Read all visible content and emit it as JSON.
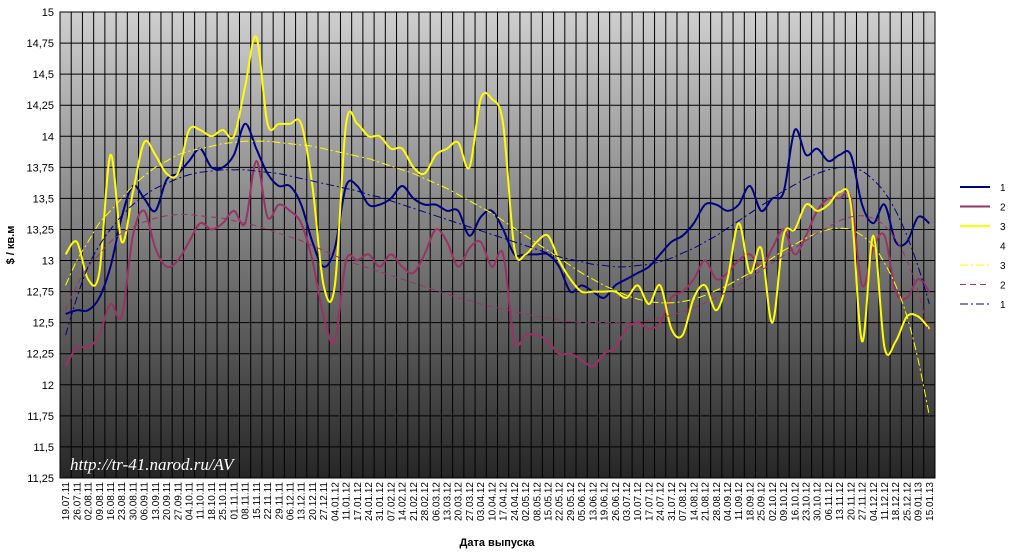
{
  "chart_data": {
    "type": "line",
    "watermark": "http://tr-41.narod.ru/AV",
    "xlabel": "Дата выпуска",
    "ylabel": "$ / кв.м",
    "grid": true,
    "legend": "right",
    "ylim": [
      11.25,
      15
    ],
    "yticks": [
      {
        "value": 11.25,
        "label": "11,25"
      },
      {
        "value": 11.5,
        "label": "11,5"
      },
      {
        "value": 11.75,
        "label": "11,75"
      },
      12,
      {
        "value": 12.25,
        "label": "12,25"
      },
      {
        "value": 12.5,
        "label": "12,5"
      },
      {
        "value": 12.75,
        "label": "12,75"
      },
      13,
      {
        "value": 13.25,
        "label": "13,25"
      },
      {
        "value": 13.5,
        "label": "13,5"
      },
      {
        "value": 13.75,
        "label": "13,75"
      },
      14,
      {
        "value": 14.25,
        "label": "14,25"
      },
      {
        "value": 14.5,
        "label": "14,5"
      },
      {
        "value": 14.75,
        "label": "14,75"
      },
      15
    ],
    "categories": [
      "19.07.11",
      "26.07.11",
      "02.08.11",
      "09.08.11",
      "16.08.11",
      "23.08.11",
      "30.08.11",
      "06.09.11",
      "13.09.11",
      "20.09.11",
      "27.09.11",
      "04.10.11",
      "11.10.11",
      "18.10.11",
      "25.10.11",
      "01.11.11",
      "08.11.11",
      "15.11.11",
      "22.11.11",
      "29.11.11",
      "06.12.11",
      "13.12.11",
      "20.12.11",
      "27.12.11",
      "04.01.12",
      "11.01.12",
      "17.01.12",
      "24.01.12",
      "31.01.12",
      "07.02.12",
      "14.02.12",
      "21.02.12",
      "28.02.12",
      "06.03.12",
      "13.03.12",
      "20.03.12",
      "27.03.12",
      "03.04.12",
      "10.04.12",
      "17.04.12",
      "24.04.12",
      "02.05.12",
      "08.05.12",
      "15.05.12",
      "22.05.12",
      "29.05.12",
      "05.06.12",
      "13.06.12",
      "19.06.12",
      "26.06.12",
      "03.07.12",
      "10.07.12",
      "17.07.12",
      "24.07.12",
      "31.07.12",
      "07.08.12",
      "14.08.12",
      "21.08.12",
      "28.08.12",
      "04.09.12",
      "11.09.12",
      "18.09.12",
      "25.09.12",
      "02.10.12",
      "09.10.12",
      "16.10.12",
      "23.10.12",
      "30.10.12",
      "06.11.12",
      "13.11.12",
      "20.11.12",
      "27.11.12",
      "04.12.12",
      "11.12.12",
      "18.12.12",
      "25.12.12",
      "09.01.13",
      "15.01.13"
    ],
    "series": [
      {
        "name": "1",
        "color": "#000080",
        "dash": "solid",
        "values": [
          12.57,
          12.6,
          12.6,
          12.7,
          12.95,
          13.35,
          13.6,
          13.5,
          13.4,
          13.65,
          13.7,
          13.8,
          13.9,
          13.75,
          13.75,
          13.85,
          14.1,
          13.9,
          13.7,
          13.6,
          13.6,
          13.45,
          13.15,
          12.95,
          13.1,
          13.6,
          13.6,
          13.45,
          13.45,
          13.5,
          13.6,
          13.5,
          13.45,
          13.45,
          13.4,
          13.4,
          13.2,
          13.35,
          13.4,
          13.25,
          13.05,
          13.05,
          13.05,
          13.05,
          12.95,
          12.75,
          12.8,
          12.75,
          12.7,
          12.8,
          12.85,
          12.9,
          12.95,
          13.05,
          13.15,
          13.2,
          13.3,
          13.45,
          13.45,
          13.4,
          13.45,
          13.6,
          13.4,
          13.5,
          13.55,
          14.05,
          13.85,
          13.9,
          13.8,
          13.85,
          13.85,
          13.45,
          13.3,
          13.45,
          13.15,
          13.15,
          13.35,
          13.3
        ]
      },
      {
        "name": "2",
        "color": "#993366",
        "dash": "solid",
        "values": [
          12.15,
          12.3,
          12.3,
          12.4,
          12.65,
          12.55,
          13.2,
          13.4,
          13.1,
          12.95,
          13.0,
          13.15,
          13.3,
          13.25,
          13.3,
          13.4,
          13.3,
          13.8,
          13.35,
          13.45,
          13.4,
          13.3,
          13.0,
          12.55,
          12.35,
          13.0,
          13.0,
          13.05,
          12.95,
          13.05,
          12.95,
          12.9,
          13.05,
          13.25,
          13.15,
          12.95,
          13.1,
          13.15,
          12.95,
          13.05,
          12.35,
          12.4,
          12.4,
          12.35,
          12.25,
          12.25,
          12.2,
          12.15,
          12.25,
          12.3,
          12.45,
          12.5,
          12.45,
          12.5,
          12.7,
          12.75,
          12.85,
          13.0,
          12.85,
          12.9,
          13.0,
          13.05,
          12.95,
          13.1,
          13.25,
          13.05,
          13.2,
          13.4,
          13.5,
          13.5,
          13.5,
          12.8,
          13.1,
          13.2,
          12.75,
          12.7,
          12.85,
          12.75
        ]
      },
      {
        "name": "3",
        "color": "#ffff00",
        "dash": "solid",
        "values": [
          13.05,
          13.15,
          12.85,
          12.9,
          13.85,
          13.15,
          13.55,
          13.95,
          13.85,
          13.7,
          13.7,
          14.05,
          14.05,
          14.0,
          14.05,
          14.0,
          14.4,
          14.8,
          14.1,
          14.1,
          14.1,
          14.1,
          13.6,
          12.8,
          12.8,
          14.1,
          14.1,
          14.0,
          14.0,
          13.9,
          13.9,
          13.75,
          13.7,
          13.85,
          13.9,
          13.95,
          13.75,
          14.3,
          14.3,
          14.1,
          13.1,
          13.05,
          13.15,
          13.2,
          13.0,
          12.85,
          12.75,
          12.75,
          12.75,
          12.75,
          12.7,
          12.8,
          12.65,
          12.8,
          12.45,
          12.4,
          12.7,
          12.8,
          12.6,
          12.85,
          13.3,
          12.9,
          13.1,
          12.5,
          13.2,
          13.25,
          13.45,
          13.4,
          13.45,
          13.55,
          13.45,
          12.35,
          13.2,
          12.3,
          12.35,
          12.55,
          12.55,
          12.45
        ]
      },
      {
        "name": "4",
        "dash": "solid",
        "values": [
          null,
          null,
          null,
          null,
          null,
          null,
          null,
          null,
          null,
          null,
          null,
          null,
          null,
          null,
          null,
          null,
          null,
          null,
          null,
          null,
          null,
          null,
          null,
          null,
          null,
          null,
          null,
          null,
          null,
          null,
          null,
          null,
          null,
          null,
          null,
          null,
          null,
          null,
          null,
          null,
          null,
          null,
          null,
          null,
          null,
          null,
          null,
          null,
          null,
          null,
          null,
          null,
          null,
          null,
          null,
          null,
          null,
          null,
          null,
          null,
          null,
          null,
          null,
          null,
          null,
          null,
          null,
          null,
          null,
          null,
          null,
          null,
          null,
          null,
          null,
          null,
          null,
          null
        ]
      },
      {
        "name": "3",
        "color": "#ffff00",
        "dash": "dash-dot",
        "values": [
          12.8,
          13.0,
          13.15,
          13.3,
          13.4,
          13.5,
          13.6,
          13.68,
          13.75,
          13.8,
          13.85,
          13.88,
          13.9,
          13.92,
          13.94,
          13.95,
          13.96,
          13.96,
          13.96,
          13.95,
          13.94,
          13.93,
          13.92,
          13.9,
          13.88,
          13.86,
          13.84,
          13.82,
          13.79,
          13.76,
          13.73,
          13.7,
          13.66,
          13.62,
          13.58,
          13.53,
          13.48,
          13.43,
          13.38,
          13.32,
          13.26,
          13.2,
          13.14,
          13.08,
          13.02,
          12.96,
          12.9,
          12.85,
          12.8,
          12.76,
          12.72,
          12.69,
          12.67,
          12.66,
          12.66,
          12.67,
          12.69,
          12.72,
          12.76,
          12.8,
          12.85,
          12.9,
          12.96,
          13.02,
          13.08,
          13.13,
          13.18,
          13.22,
          13.25,
          13.26,
          13.25,
          13.2,
          13.12,
          12.98,
          12.8,
          12.55,
          12.2,
          11.75
        ]
      },
      {
        "name": "2",
        "color": "#993366",
        "dash": "dash",
        "values": [
          12.6,
          12.8,
          12.95,
          13.05,
          13.15,
          13.22,
          13.27,
          13.31,
          13.34,
          13.36,
          13.37,
          13.37,
          13.36,
          13.35,
          13.34,
          13.32,
          13.3,
          13.28,
          13.25,
          13.22,
          13.19,
          13.16,
          13.12,
          13.08,
          13.04,
          13.0,
          12.97,
          12.94,
          12.91,
          12.88,
          12.85,
          12.82,
          12.79,
          12.76,
          12.73,
          12.7,
          12.68,
          12.65,
          12.63,
          12.61,
          12.59,
          12.57,
          12.55,
          12.54,
          12.52,
          12.51,
          12.5,
          12.5,
          12.5,
          12.5,
          12.5,
          12.51,
          12.52,
          12.54,
          12.56,
          12.59,
          12.62,
          12.66,
          12.7,
          12.75,
          12.8,
          12.86,
          12.92,
          12.98,
          13.04,
          13.1,
          13.16,
          13.22,
          13.27,
          13.32,
          13.35,
          13.36,
          13.34,
          13.28,
          13.17,
          13.0,
          12.75,
          12.4
        ]
      },
      {
        "name": "1",
        "color": "#000080",
        "dash": "dash-dot",
        "values": [
          12.4,
          12.7,
          12.95,
          13.12,
          13.25,
          13.36,
          13.45,
          13.52,
          13.58,
          13.62,
          13.66,
          13.69,
          13.71,
          13.72,
          13.73,
          13.73,
          13.73,
          13.72,
          13.71,
          13.7,
          13.68,
          13.66,
          13.64,
          13.62,
          13.6,
          13.58,
          13.56,
          13.53,
          13.51,
          13.48,
          13.45,
          13.42,
          13.39,
          13.36,
          13.33,
          13.3,
          13.27,
          13.24,
          13.21,
          13.18,
          13.15,
          13.12,
          13.09,
          13.06,
          13.03,
          13.01,
          12.99,
          12.97,
          12.96,
          12.95,
          12.95,
          12.96,
          12.97,
          12.99,
          13.02,
          13.06,
          13.1,
          13.15,
          13.2,
          13.26,
          13.32,
          13.38,
          13.44,
          13.5,
          13.56,
          13.61,
          13.66,
          13.7,
          13.73,
          13.75,
          13.75,
          13.72,
          13.65,
          13.55,
          13.4,
          13.2,
          12.95,
          12.65
        ]
      }
    ]
  }
}
